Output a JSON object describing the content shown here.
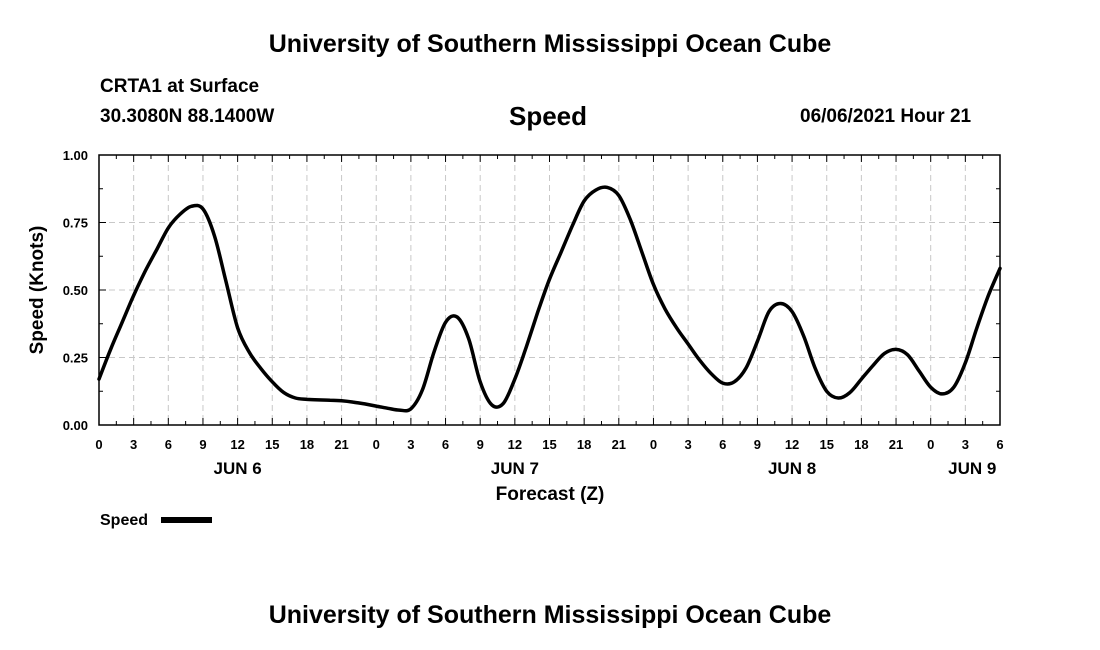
{
  "header": {
    "title_top": "University of Southern Mississippi Ocean Cube",
    "title_bottom": "University of Southern Mississippi Ocean Cube",
    "station": "CRTA1 at Surface",
    "coords": "30.3080N  88.1400W",
    "chart_title": "Speed",
    "timestamp": "06/06/2021 Hour 21"
  },
  "chart_data": {
    "type": "line",
    "title": "Speed",
    "xlabel": "Forecast (Z)",
    "ylabel": "Speed (Knots)",
    "xlim": [
      0,
      78
    ],
    "ylim": [
      0,
      1
    ],
    "grid": true,
    "yticks": [
      0,
      0.25,
      0.5,
      0.75,
      1.0
    ],
    "ytick_labels": [
      "0.00",
      "0.25",
      "0.50",
      "0.75",
      "1.00"
    ],
    "xtick_labels": [
      "0",
      "3",
      "6",
      "9",
      "12",
      "15",
      "18",
      "21",
      "0",
      "3",
      "6",
      "9",
      "12",
      "15",
      "18",
      "21",
      "0",
      "3",
      "6",
      "9",
      "12",
      "15",
      "18",
      "21",
      "0",
      "3",
      "6"
    ],
    "date_labels": [
      {
        "label": "JUN 6",
        "hour": 12
      },
      {
        "label": "JUN 7",
        "hour": 36
      },
      {
        "label": "JUN 8",
        "hour": 60
      },
      {
        "label": "JUN 9",
        "hour": 75.6
      }
    ],
    "legend": {
      "label": "Speed",
      "placement": "bottom-left"
    },
    "series": [
      {
        "name": "Speed",
        "color": "#000000",
        "x": [
          0,
          1,
          2,
          3,
          4,
          5,
          6,
          7,
          8,
          9,
          10,
          11,
          12,
          13,
          14,
          15,
          16,
          17,
          18,
          19,
          20,
          21,
          22,
          23,
          24,
          25,
          26,
          27,
          28,
          29,
          30,
          31,
          32,
          33,
          34,
          35,
          36,
          37,
          38,
          39,
          40,
          41,
          42,
          43,
          44,
          45,
          46,
          47,
          48,
          49,
          50,
          51,
          52,
          53,
          54,
          55,
          56,
          57,
          58,
          59,
          60,
          61,
          62,
          63,
          64,
          65,
          66,
          67,
          68,
          69,
          70,
          71,
          72,
          73,
          74,
          75,
          76,
          77,
          78
        ],
        "values": [
          0.17,
          0.28,
          0.38,
          0.48,
          0.57,
          0.65,
          0.73,
          0.78,
          0.81,
          0.8,
          0.7,
          0.53,
          0.36,
          0.27,
          0.21,
          0.16,
          0.12,
          0.1,
          0.095,
          0.093,
          0.092,
          0.09,
          0.085,
          0.078,
          0.07,
          0.062,
          0.055,
          0.06,
          0.13,
          0.27,
          0.38,
          0.4,
          0.32,
          0.16,
          0.075,
          0.08,
          0.17,
          0.29,
          0.42,
          0.54,
          0.64,
          0.74,
          0.83,
          0.87,
          0.88,
          0.85,
          0.76,
          0.64,
          0.52,
          0.43,
          0.36,
          0.3,
          0.24,
          0.19,
          0.155,
          0.16,
          0.21,
          0.31,
          0.42,
          0.45,
          0.42,
          0.33,
          0.21,
          0.125,
          0.1,
          0.12,
          0.17,
          0.22,
          0.265,
          0.28,
          0.26,
          0.2,
          0.14,
          0.115,
          0.14,
          0.23,
          0.36,
          0.48,
          0.58
        ]
      }
    ]
  }
}
